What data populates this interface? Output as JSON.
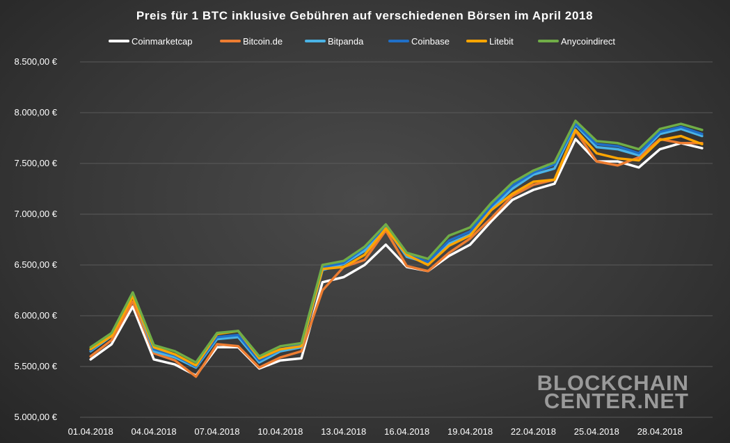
{
  "chart_data": {
    "type": "line",
    "title": "Preis für 1 BTC inklusive  Gebühren  auf  verschiedenen  Börsen  im  April  2018",
    "x": [
      "01.04.2018",
      "02.04.2018",
      "03.04.2018",
      "04.04.2018",
      "05.04.2018",
      "06.04.2018",
      "07.04.2018",
      "08.04.2018",
      "09.04.2018",
      "10.04.2018",
      "11.04.2018",
      "12.04.2018",
      "13.04.2018",
      "14.04.2018",
      "15.04.2018",
      "16.04.2018",
      "17.04.2018",
      "18.04.2018",
      "19.04.2018",
      "20.04.2018",
      "21.04.2018",
      "22.04.2018",
      "23.04.2018",
      "24.04.2018",
      "25.04.2018",
      "26.04.2018",
      "27.04.2018",
      "28.04.2018",
      "29.04.2018",
      "30.04.2018"
    ],
    "x_tick_labels": [
      "01.04.2018",
      "04.04.2018",
      "07.04.2018",
      "10.04.2018",
      "13.04.2018",
      "16.04.2018",
      "19.04.2018",
      "22.04.2018",
      "25.04.2018",
      "28.04.2018"
    ],
    "y_tick_labels": [
      "5.000,00 €",
      "5.500,00 €",
      "6.000,00 €",
      "6.500,00 €",
      "7.000,00 €",
      "7.500,00 €",
      "8.000,00 €",
      "8.500,00 €"
    ],
    "ylim": [
      5000,
      8500
    ],
    "grid": true,
    "legend_position": "top",
    "series": [
      {
        "name": "Coinmarketcap",
        "color": "#ffffff",
        "values": [
          5570,
          5720,
          6090,
          5570,
          5520,
          5410,
          5690,
          5690,
          5480,
          5560,
          5580,
          6330,
          6380,
          6500,
          6700,
          6480,
          6440,
          6590,
          6700,
          6930,
          7140,
          7240,
          7300,
          7740,
          7520,
          7520,
          7460,
          7640,
          7700,
          7650
        ]
      },
      {
        "name": "Bitcoin.de",
        "color": "#ed7d31",
        "values": [
          5600,
          5760,
          6140,
          5630,
          5560,
          5400,
          5720,
          5700,
          5490,
          5590,
          5650,
          6250,
          6480,
          6550,
          6840,
          6490,
          6440,
          6620,
          6760,
          6960,
          7180,
          7290,
          7340,
          7820,
          7520,
          7480,
          7560,
          7740,
          7700,
          7700
        ]
      },
      {
        "name": "Bitpanda",
        "color": "#4ab3e6",
        "values": [
          5650,
          5800,
          6200,
          5650,
          5590,
          5490,
          5770,
          5790,
          5540,
          5650,
          5690,
          6450,
          6510,
          6640,
          6870,
          6580,
          6520,
          6710,
          6800,
          7050,
          7250,
          7390,
          7450,
          7880,
          7660,
          7640,
          7580,
          7790,
          7840,
          7770
        ]
      },
      {
        "name": "Coinbase",
        "color": "#1f6fc8",
        "values": [
          5660,
          5810,
          6210,
          5670,
          5610,
          5500,
          5790,
          5810,
          5560,
          5670,
          5710,
          6480,
          6520,
          6670,
          6880,
          6600,
          6530,
          6740,
          6830,
          7080,
          7280,
          7410,
          7490,
          7890,
          7690,
          7670,
          7600,
          7810,
          7860,
          7790
        ]
      },
      {
        "name": "Litebit",
        "color": "#ffa500",
        "values": [
          5670,
          5800,
          6190,
          5690,
          5620,
          5510,
          5820,
          5850,
          5580,
          5670,
          5700,
          6460,
          6480,
          6600,
          6860,
          6600,
          6500,
          6690,
          6790,
          7040,
          7200,
          7320,
          7340,
          7830,
          7600,
          7550,
          7530,
          7730,
          7770,
          7690
        ]
      },
      {
        "name": "Anycoindirect",
        "color": "#70ad47",
        "values": [
          5690,
          5830,
          6230,
          5710,
          5650,
          5540,
          5830,
          5850,
          5600,
          5700,
          5730,
          6500,
          6540,
          6680,
          6900,
          6620,
          6560,
          6790,
          6870,
          7110,
          7310,
          7430,
          7510,
          7920,
          7720,
          7700,
          7640,
          7840,
          7890,
          7830
        ]
      }
    ]
  },
  "watermark": {
    "line1": "BLOCKCHAIN",
    "line2": "CENTER.NET"
  }
}
